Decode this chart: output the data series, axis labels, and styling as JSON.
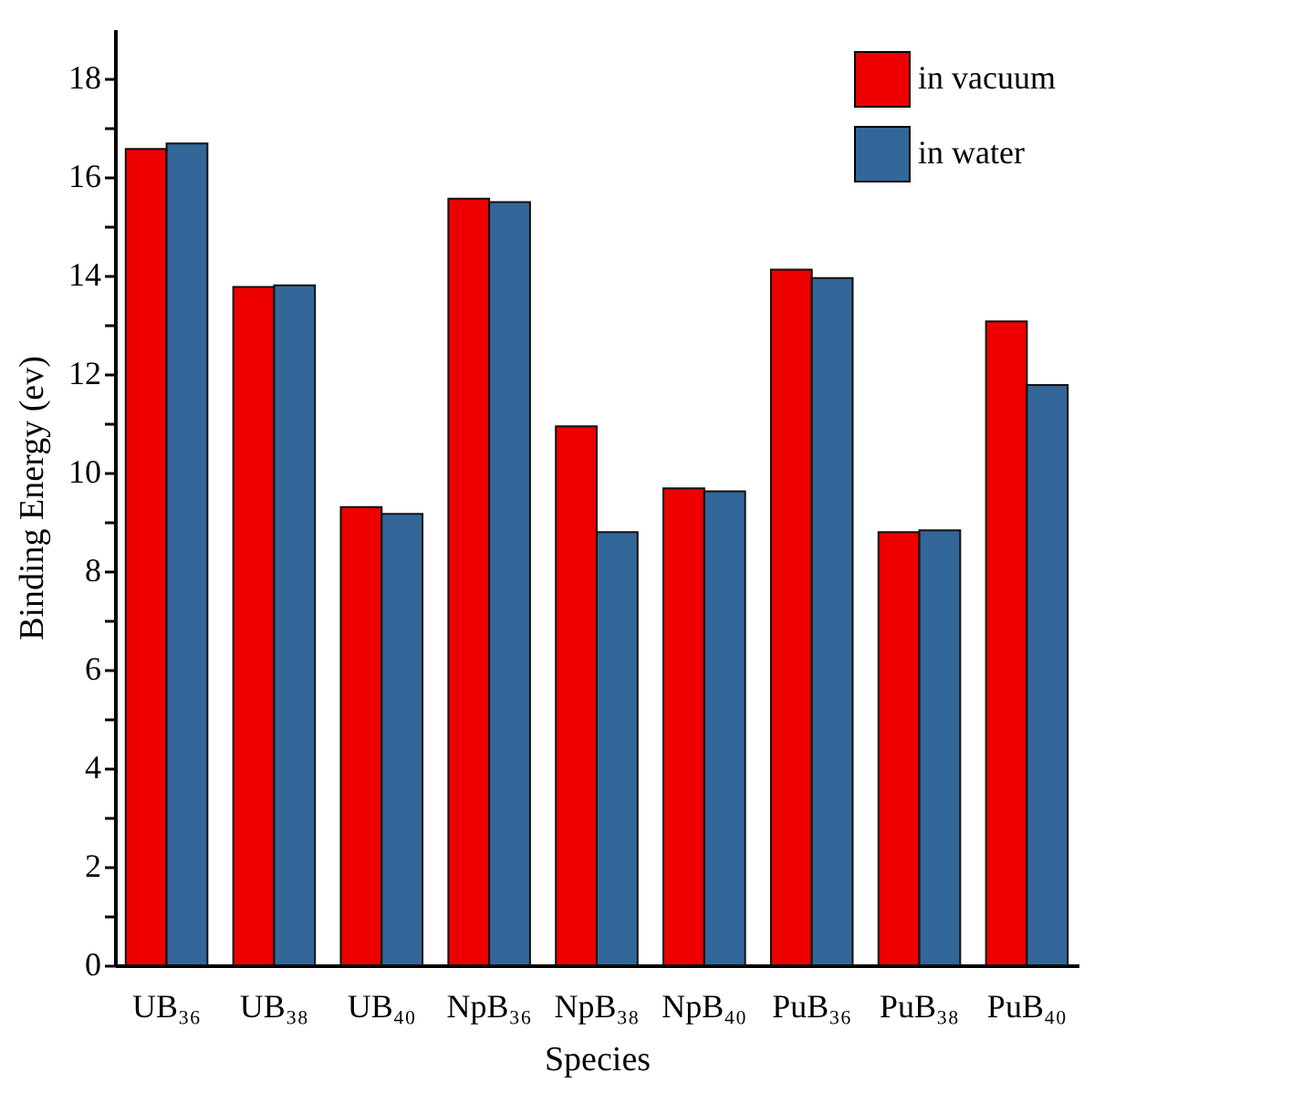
{
  "chart_data": {
    "type": "bar",
    "xlabel": "Species",
    "ylabel": "Binding Energy (ev)",
    "categories": [
      "UB₃₆",
      "UB₃₈",
      "UB₄₀",
      "NpB₃₆",
      "NpB₃₈",
      "NpB₄₀",
      "PuB₃₆",
      "PuB₃₈",
      "PuB₄₀"
    ],
    "series": [
      {
        "name": "in vacuum",
        "color": "#ee0000",
        "values": [
          16.57,
          13.77,
          9.3,
          15.56,
          10.94,
          9.68,
          14.12,
          8.79,
          13.07
        ]
      },
      {
        "name": "in water",
        "color": "#336699",
        "values": [
          16.68,
          13.8,
          9.16,
          15.49,
          8.79,
          9.62,
          13.95,
          8.83,
          11.78
        ]
      }
    ],
    "ylim": [
      0,
      19
    ],
    "yticks": [
      0,
      {
        "value": 1,
        "label": null
      },
      2,
      {
        "value": 3,
        "label": null
      },
      4,
      {
        "value": 5,
        "label": null
      },
      6,
      {
        "value": 7,
        "label": null
      },
      8,
      {
        "value": 9,
        "label": null
      },
      10,
      {
        "value": 11,
        "label": null
      },
      12,
      {
        "value": 13,
        "label": null
      },
      14,
      {
        "value": 15,
        "label": null
      },
      16,
      {
        "value": 17,
        "label": null
      },
      18
    ],
    "grid": false,
    "legend": "top right"
  }
}
